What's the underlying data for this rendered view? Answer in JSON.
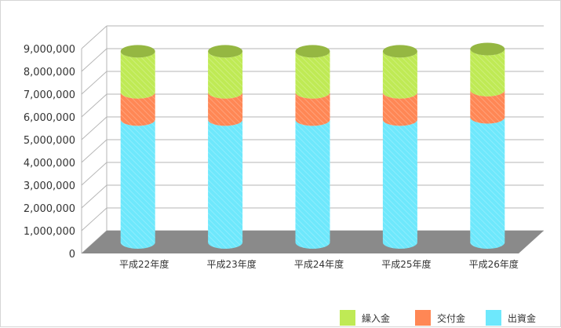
{
  "chart_data": {
    "type": "bar",
    "stacked": true,
    "style": "3d-cylinder",
    "title": "",
    "xlabel": "",
    "ylabel": "",
    "categories": [
      "平成22年度",
      "平成23年度",
      "平成24年度",
      "平成25年度",
      "平成26年度"
    ],
    "series": [
      {
        "name": "出資金",
        "color": "#6ee8fc",
        "values": [
          5400000,
          5400000,
          5400000,
          5400000,
          5500000
        ]
      },
      {
        "name": "交付金",
        "color": "#ff8755",
        "values": [
          1200000,
          1200000,
          1200000,
          1200000,
          1200000
        ]
      },
      {
        "name": "繰入金",
        "color": "#bfea55",
        "values": [
          1800000,
          1800000,
          1800000,
          1800000,
          1800000
        ]
      }
    ],
    "ylim": [
      0,
      9000000
    ],
    "yticks": [
      "0",
      "1,000,000",
      "2,000,000",
      "3,000,000",
      "4,000,000",
      "5,000,000",
      "6,000,000",
      "7,000,000",
      "8,000,000",
      "9,000,000"
    ],
    "grid": true,
    "legend": {
      "placement": "bottom-right",
      "order": [
        "繰入金",
        "交付金",
        "出資金"
      ]
    }
  }
}
